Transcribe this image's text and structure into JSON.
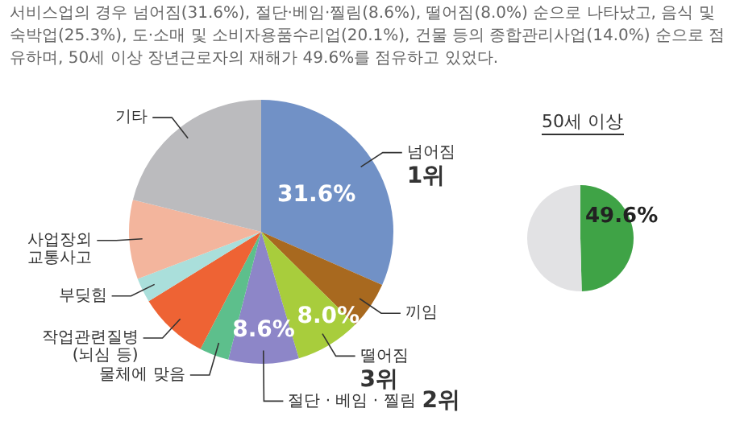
{
  "chart_data": [
    {
      "type": "pie",
      "title": "서비스업의 경우 넘어짐(31.6%), 절단·베임·찔림(8.6%), 떨어짐(8.0%) 순으로 나타났고, 음식 및 숙박업(25.3%), 도·소매 및 소비자용품수리업(20.1%), 건물 등의 종합관리사업(14.0%) 순으로 점유하며, 50세 이상 장년근로자의 재해가 49.6%를 점유하고 있었다.",
      "categories": [
        "넘어짐",
        "끼임",
        "떨어짐",
        "절단 · 베임 · 찔림",
        "물체에 맞음",
        "작업관련질병\n(뇌심 등)",
        "부딪힘",
        "사업장외\n교통사고",
        "기타"
      ],
      "values": [
        31.6,
        5.8,
        8.0,
        8.6,
        3.6,
        8.6,
        3.0,
        9.7,
        21.1
      ],
      "colors": [
        "#7191c6",
        "#a8691f",
        "#a8cd3c",
        "#8d86c8",
        "#5dbf8c",
        "#ee6334",
        "#aadfdb",
        "#f3b59d",
        "#bbbbbe"
      ],
      "value_labels": [
        "31.6%",
        null,
        "8.0%",
        "8.6%",
        null,
        null,
        null,
        null,
        null
      ],
      "annotations": [
        {
          "text": "1위",
          "x": "넘어짐"
        },
        {
          "text": "2위",
          "x": "절단 · 베임 · 찔림"
        },
        {
          "text": "3위",
          "x": "떨어짐"
        }
      ]
    },
    {
      "type": "pie",
      "title": "50세 이상",
      "categories": [
        null,
        null
      ],
      "values": [
        49.6,
        50.4
      ],
      "colors": [
        "#3fa346",
        "#e2e2e4"
      ],
      "value_labels": [
        "49.6%",
        null
      ]
    }
  ]
}
